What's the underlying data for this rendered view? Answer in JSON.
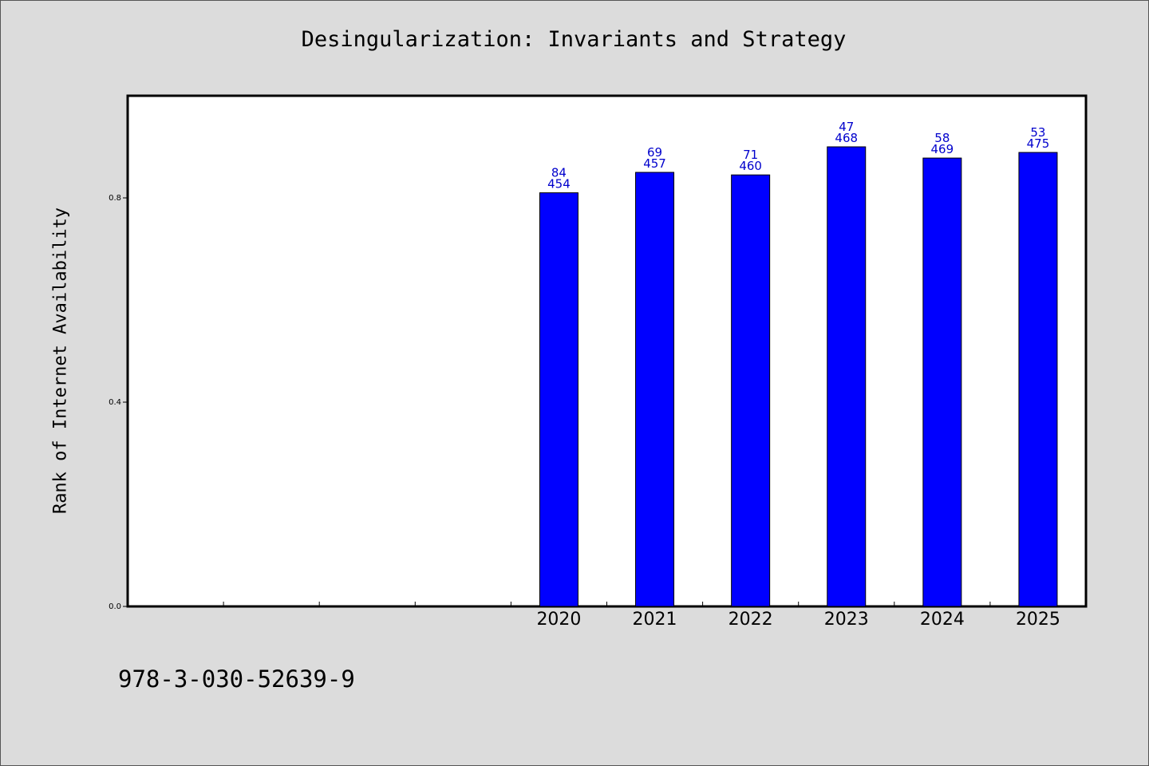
{
  "chart_data": {
    "type": "bar",
    "title": "Desingularization: Invariants and Strategy",
    "ylabel": "Rank of Internet Availability",
    "xlabel": "",
    "categories": [
      "",
      "",
      "",
      "",
      "2020",
      "2021",
      "2022",
      "2023",
      "2024",
      "2025"
    ],
    "values": [
      null,
      null,
      null,
      null,
      0.81,
      0.85,
      0.845,
      0.9,
      0.878,
      0.889
    ],
    "value_labels_top": [
      "",
      "",
      "",
      "",
      "84",
      "69",
      "71",
      "47",
      "58",
      "53"
    ],
    "value_labels_bottom": [
      "",
      "",
      "",
      "",
      "454",
      "457",
      "460",
      "468",
      "469",
      "475"
    ],
    "ylim": [
      0,
      1.0
    ],
    "yticks": [
      0.0,
      0.4,
      0.8
    ],
    "ytick_labels": [
      "0.0",
      "0.4",
      "0.8"
    ],
    "bar_color": "#0000ff",
    "label_color": "#0000cc",
    "grid": false
  },
  "footer_text": "978-3-030-52639-9"
}
